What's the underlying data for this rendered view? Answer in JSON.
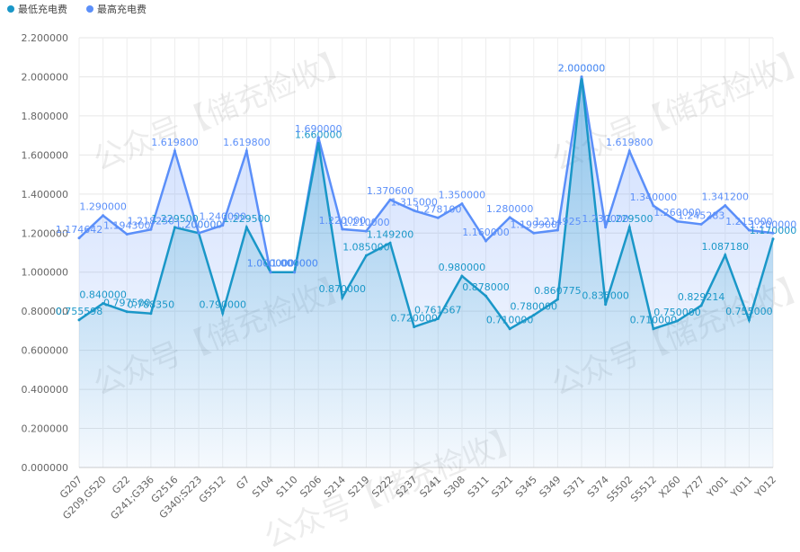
{
  "chart_data": {
    "type": "line",
    "watermark": "公众号【储充检收】",
    "categories": [
      "G207",
      "G209,G520",
      "G22",
      "G241;G336",
      "G2516",
      "G340;S223",
      "G5512",
      "G7",
      "S104",
      "S110",
      "S206",
      "S214",
      "S219",
      "S222",
      "S237",
      "S241",
      "S308",
      "S311",
      "S321",
      "S345",
      "S349",
      "S371",
      "S374",
      "S5502",
      "S5512",
      "X260",
      "X727",
      "Y001",
      "Y011",
      "Y012"
    ],
    "series": [
      {
        "name": "最低充电费",
        "color": "#1a97c8",
        "values": [
          0.755598,
          0.84,
          0.7975,
          0.78835,
          1.2295,
          1.2,
          0.79,
          1.2295,
          1.0,
          1.0,
          1.66,
          0.87,
          1.085,
          1.1492,
          0.72,
          0.761567,
          0.98,
          0.878,
          0.71,
          0.78,
          0.860775,
          2.0,
          0.835,
          1.2295,
          0.71,
          0.75,
          0.829214,
          1.08718,
          0.755,
          1.17
        ],
        "value_labels": [
          "0.755598",
          "0.840000",
          "0.797500",
          "0.788350",
          "1.229500",
          "1.200000",
          "0.790000",
          "1.229500",
          "1.000000",
          "1.000000",
          "1.660000",
          "0.870000",
          "1.085000",
          "1.149200",
          "0.720000",
          "0.761567",
          "0.980000",
          "0.878000",
          "0.710000",
          "0.780000",
          "0.860775",
          "2.000000",
          "0.835000",
          "1.229500",
          "0.710000",
          "0.750000",
          "0.829214",
          "1.087180",
          "0.755000",
          "1.170000"
        ]
      },
      {
        "name": "最高充电费",
        "color": "#5b8ff9",
        "values": [
          1.174642,
          1.29,
          1.1943,
          1.21825,
          1.6198,
          1.2,
          1.24,
          1.6198,
          1.0,
          1.0,
          1.69,
          1.22,
          1.21,
          1.3706,
          1.315,
          1.2781,
          1.35,
          1.16,
          1.28,
          1.1999,
          1.214925,
          2.0,
          1.23,
          1.6198,
          1.34,
          1.26,
          1.245283,
          1.3412,
          1.215,
          1.2
        ],
        "value_labels": [
          "1.174642",
          "1.290000",
          "1.194300",
          "1.218250",
          "1.619800",
          "1.200000",
          "1.240000",
          "1.619800",
          "1.000000",
          "1.000000",
          "1.690000",
          "1.220000",
          "1.210000",
          "1.370600",
          "1.315000",
          "1.278100",
          "1.350000",
          "1.160000",
          "1.280000",
          "1.199900",
          "1.214925",
          "2.000000",
          "1.230000",
          "1.619800",
          "1.340000",
          "1.260000",
          "1.245283",
          "1.341200",
          "1.215000",
          "1.200000"
        ]
      }
    ],
    "ylim": [
      0,
      2.2
    ],
    "yticks": [
      {
        "value": 0,
        "label": "0.000000"
      },
      {
        "value": 0.2,
        "label": "0.200000"
      },
      {
        "value": 0.4,
        "label": "0.400000"
      },
      {
        "value": 0.6,
        "label": "0.600000"
      },
      {
        "value": 0.8,
        "label": "0.800000"
      },
      {
        "value": 1.0,
        "label": "1.000000"
      },
      {
        "value": 1.2,
        "label": "1.200000"
      },
      {
        "value": 1.4,
        "label": "1.400000"
      },
      {
        "value": 1.6,
        "label": "1.600000"
      },
      {
        "value": 1.8,
        "label": "1.800000"
      },
      {
        "value": 2.0,
        "label": "2.000000"
      },
      {
        "value": 2.2,
        "label": "2.200000"
      }
    ],
    "grid": true,
    "legend": "top-left"
  }
}
